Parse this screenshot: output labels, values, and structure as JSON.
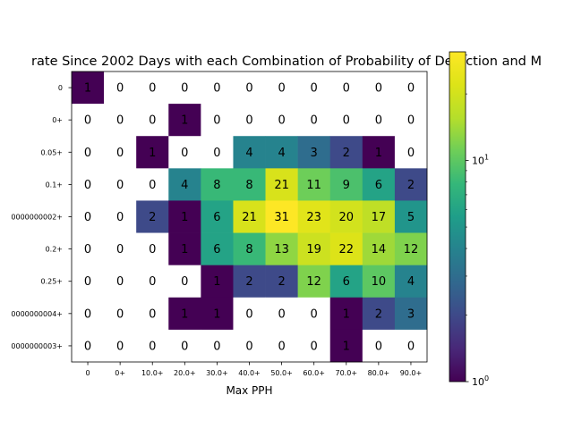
{
  "chart_data": {
    "type": "heatmap",
    "title": "rate Since 2002 Days with each Combination of Probability of Detection and M",
    "xlabel": "Max PPH",
    "ylabel": "",
    "x_categories": [
      "0",
      "0+",
      "10.0+",
      "20.0+",
      "30.0+",
      "40.0+",
      "50.0+",
      "60.0+",
      "70.0+",
      "80.0+",
      "90.0+"
    ],
    "y_categories": [
      "0",
      "0+",
      "0.05+",
      "0.1+",
      "0000000002+",
      "0.2+",
      "0.25+",
      "0000000004+",
      "0000000003+"
    ],
    "values": [
      [
        1,
        0,
        0,
        0,
        0,
        0,
        0,
        0,
        0,
        0,
        0
      ],
      [
        0,
        0,
        0,
        1,
        0,
        0,
        0,
        0,
        0,
        0,
        0
      ],
      [
        0,
        0,
        1,
        0,
        0,
        4,
        4,
        3,
        2,
        1,
        0
      ],
      [
        0,
        0,
        0,
        4,
        8,
        8,
        21,
        11,
        9,
        6,
        2
      ],
      [
        0,
        0,
        2,
        1,
        6,
        21,
        31,
        23,
        20,
        17,
        5
      ],
      [
        0,
        0,
        0,
        1,
        6,
        8,
        13,
        19,
        22,
        14,
        12
      ],
      [
        0,
        0,
        0,
        0,
        1,
        2,
        2,
        12,
        6,
        10,
        4
      ],
      [
        0,
        0,
        0,
        1,
        1,
        0,
        0,
        0,
        1,
        2,
        3
      ],
      [
        0,
        0,
        0,
        0,
        0,
        0,
        0,
        0,
        1,
        0,
        0
      ]
    ],
    "color_scale": "log",
    "colormap": "viridis",
    "vmin": 1,
    "vmax": 31,
    "zero_color": "#ffffff",
    "colorbar": {
      "tick_major": [
        "10^0",
        "10^1"
      ],
      "tick_major_values": [
        1,
        10
      ],
      "tick_minor_values": [
        2,
        3,
        4,
        5,
        6,
        7,
        8,
        9,
        20,
        30
      ]
    },
    "grid": false
  }
}
